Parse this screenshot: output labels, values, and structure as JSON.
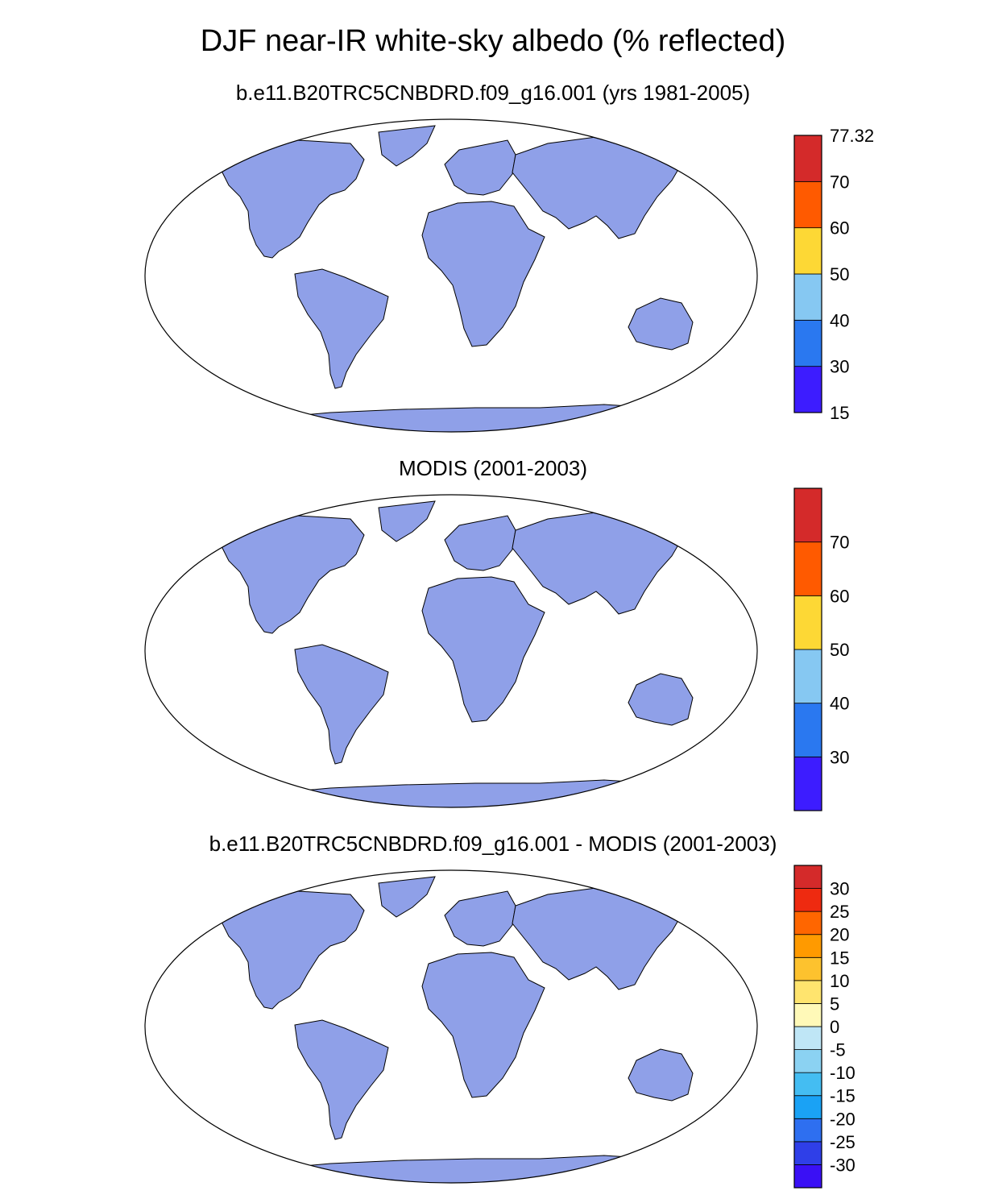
{
  "title": "DJF near-IR white-sky albedo (% reflected)",
  "colors": {
    "land_fill": "#8fa0e8",
    "coast": "#000000",
    "map_border": "#000000"
  },
  "panels": [
    {
      "id": "model",
      "title": "b.e11.B20TRC5CNBDRD.f09_g16.001 (yrs 1981-2005)",
      "colorbar": {
        "colors": [
          "#3d1cff",
          "#2a78f0",
          "#86c8f2",
          "#fdd835",
          "#ff5a00",
          "#d42a2a"
        ],
        "labels": [
          "15",
          "30",
          "40",
          "50",
          "60",
          "70",
          "77.32"
        ]
      }
    },
    {
      "id": "obs",
      "title": "MODIS (2001-2003)",
      "colorbar": {
        "colors": [
          "#3d1cff",
          "#2a78f0",
          "#86c8f2",
          "#fdd835",
          "#ff5a00",
          "#d42a2a"
        ],
        "labels": [
          "30",
          "40",
          "50",
          "60",
          "70"
        ]
      }
    },
    {
      "id": "diff",
      "title": "b.e11.B20TRC5CNBDRD.f09_g16.001 - MODIS (2001-2003)",
      "colorbar": {
        "colors": [
          "#3a10f5",
          "#2f3fe8",
          "#2e6ff0",
          "#1aa2f5",
          "#44bdf2",
          "#8bd2f2",
          "#bfe6f6",
          "#fff9b8",
          "#ffe46e",
          "#fdc22e",
          "#ff9a00",
          "#ff6600",
          "#ee2a10",
          "#d42a2a"
        ],
        "labels": [
          "-30",
          "-25",
          "-20",
          "-15",
          "-10",
          "-5",
          "0",
          "5",
          "10",
          "15",
          "20",
          "25",
          "30"
        ]
      }
    }
  ]
}
